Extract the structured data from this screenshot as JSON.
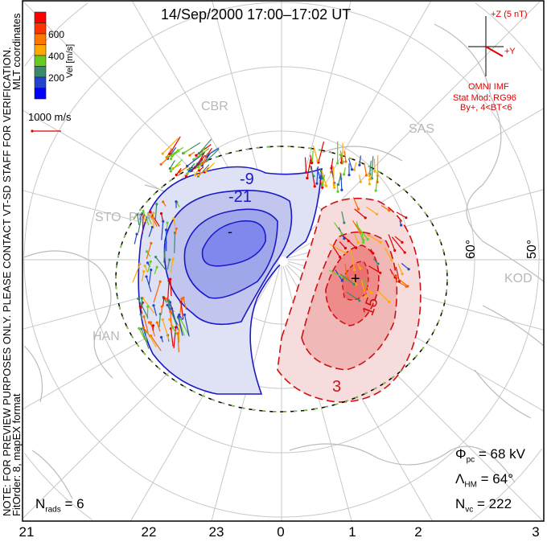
{
  "title": "14/Sep/2000 17:00–17:02 UT",
  "side_notes": {
    "line1": "NOTE: FOR PREVIEW PURPOSES ONLY. PLEASE CONTACT VT-SD STAFF FOR VERIFICATION.",
    "line2_left": "FitOrder: 8, mapEX format",
    "line2_right": "MLT coordinates"
  },
  "colorbar": {
    "label": "Vel [m/s]",
    "ticks": [
      "600",
      "400",
      "200"
    ],
    "colors": [
      "#ff0000",
      "#ff3300",
      "#ff7700",
      "#ffaa00",
      "#66cc22",
      "#3a8a6a",
      "#2244cc",
      "#0000ff"
    ]
  },
  "scale": {
    "label": "1000 m/s",
    "color": "#e00000"
  },
  "imf": {
    "z_label": "+Z (5 nT)",
    "y_label": "+Y",
    "source": "OMNI IMF",
    "model": "Stat Mod: RG96",
    "condition": "By+, 4<BT<6"
  },
  "stations": [
    "CBR",
    "SAS",
    "STO",
    "PYK",
    "HAN",
    "KOD"
  ],
  "lat_labels": [
    "60°",
    "50°"
  ],
  "contour_labels": [
    "-9",
    "-21",
    "-",
    "+",
    "15",
    "3"
  ],
  "mlt_labels": [
    "21",
    "22",
    "23",
    "0",
    "1",
    "2",
    "3"
  ],
  "stats": {
    "nrads_sym": "N",
    "nrads_sub": "rads",
    "nrads_val": "= 6",
    "phi_sym": "Φ",
    "phi_sub": "pc",
    "phi_val": "= 68 kV",
    "lam_sym": "Λ",
    "lam_sub": "HM",
    "lam_val": "= 64°",
    "nvc_sym": "N",
    "nvc_sub": "vc",
    "nvc_val": "= 222"
  }
}
